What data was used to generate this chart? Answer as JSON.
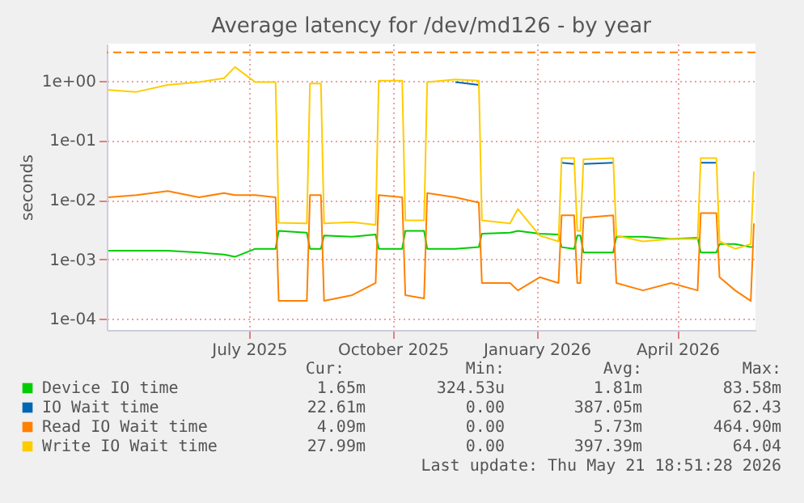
{
  "chart_data": {
    "type": "line",
    "title": "Average latency for /dev/md126 - by year",
    "ylabel": "seconds",
    "log": true,
    "grid": true,
    "legend": "bottom",
    "marker": "none",
    "line_style": "solid",
    "x": [
      "2025-04-02",
      "2025-04-20",
      "2025-05-10",
      "2025-05-30",
      "2025-06-15",
      "2025-06-22",
      "2025-07-05",
      "2025-07-18",
      "2025-07-20",
      "2025-08-07",
      "2025-08-09",
      "2025-08-16",
      "2025-08-18",
      "2025-09-05",
      "2025-09-20",
      "2025-09-22",
      "2025-10-07",
      "2025-10-09",
      "2025-10-21",
      "2025-10-23",
      "2025-11-10",
      "2025-11-25",
      "2025-11-27",
      "2025-12-15",
      "2025-12-20",
      "2026-01-03",
      "2026-01-15",
      "2026-01-17",
      "2026-01-25",
      "2026-01-27",
      "2026-01-29",
      "2026-01-31",
      "2026-02-19",
      "2026-02-21",
      "2026-03-10",
      "2026-03-28",
      "2026-04-14",
      "2026-04-16",
      "2026-04-26",
      "2026-04-28",
      "2026-05-08",
      "2026-05-18",
      "2026-05-20"
    ],
    "xlim": [
      "2025-04-01",
      "2026-05-21"
    ],
    "xticks": [
      {
        "value": "2025-07-01",
        "label": "July 2025"
      },
      {
        "value": "2025-10-01",
        "label": "October 2025"
      },
      {
        "value": "2026-01-01",
        "label": "January 2026"
      },
      {
        "value": "2026-04-01",
        "label": "April 2026"
      }
    ],
    "ylim": [
      6.5e-05,
      4.2
    ],
    "yticks": [
      {
        "value": 0.0001,
        "label": "1e-04"
      },
      {
        "value": 0.001,
        "label": "1e-03"
      },
      {
        "value": 0.01,
        "label": "1e-02"
      },
      {
        "value": 0.1,
        "label": "1e-01"
      },
      {
        "value": 1,
        "label": "1e+00"
      }
    ],
    "series": [
      {
        "name": "Device IO time",
        "color": "#00cc00",
        "values": [
          0.0014,
          0.0014,
          0.0014,
          0.0013,
          0.0012,
          0.0011,
          0.0015,
          0.0015,
          0.003,
          0.0028,
          0.0015,
          0.0015,
          0.0025,
          0.0024,
          0.0026,
          0.0015,
          0.0015,
          0.003,
          0.003,
          0.0015,
          0.0015,
          0.0016,
          0.0027,
          0.0028,
          0.003,
          0.0027,
          0.0026,
          0.0016,
          0.0015,
          0.0025,
          0.0025,
          0.0013,
          0.0013,
          0.0024,
          0.0024,
          0.0022,
          0.0023,
          0.0013,
          0.0013,
          0.0018,
          0.0018,
          0.0016,
          0.00165
        ]
      },
      {
        "name": "IO Wait time",
        "color": "#0066b3",
        "values": [
          null,
          null,
          null,
          null,
          null,
          null,
          null,
          null,
          null,
          null,
          null,
          null,
          null,
          null,
          null,
          null,
          null,
          null,
          null,
          null,
          0.95,
          0.85,
          null,
          null,
          null,
          null,
          null,
          0.042,
          0.04,
          null,
          null,
          0.04,
          0.042,
          null,
          null,
          null,
          null,
          0.042,
          0.042,
          null,
          null,
          null,
          null
        ]
      },
      {
        "name": "Read IO Wait time",
        "color": "#ff8000",
        "values": [
          0.011,
          0.012,
          0.014,
          0.011,
          0.013,
          0.012,
          0.012,
          0.011,
          0.0002,
          0.0002,
          0.012,
          0.012,
          0.0002,
          0.00025,
          0.0004,
          0.012,
          0.011,
          0.00025,
          0.00022,
          0.013,
          0.011,
          0.009,
          0.0004,
          0.0004,
          0.0003,
          0.0005,
          0.0004,
          0.0055,
          0.0055,
          0.0004,
          0.0004,
          0.005,
          0.0055,
          0.0004,
          0.0003,
          0.0004,
          0.0003,
          0.006,
          0.006,
          0.0005,
          0.0003,
          0.0002,
          0.004
        ]
      },
      {
        "name": "Write IO Wait time",
        "color": "#ffcc00",
        "values": [
          0.7,
          0.65,
          0.85,
          0.95,
          1.1,
          1.7,
          0.95,
          0.95,
          0.0041,
          0.004,
          0.9,
          0.9,
          0.004,
          0.0042,
          0.0038,
          1.0,
          1.0,
          0.0045,
          0.0045,
          0.95,
          1.05,
          1.0,
          0.0045,
          0.004,
          0.007,
          0.0025,
          0.002,
          0.05,
          0.05,
          0.003,
          0.003,
          0.048,
          0.05,
          0.0025,
          0.002,
          0.0022,
          0.0022,
          0.05,
          0.05,
          0.002,
          0.0015,
          0.0018,
          0.03
        ]
      }
    ],
    "ref_lines": [
      {
        "axis": "y",
        "value": 3,
        "color": "#ff8000",
        "line_style": "dashed"
      }
    ],
    "annotations": [
      "Cur:",
      "Min:",
      "Avg:",
      "Max:",
      "1.65m",
      "324.53u",
      "1.81m",
      "83.58m",
      "22.61m",
      "0.00",
      "387.05m",
      "62.43",
      "4.09m",
      "0.00",
      "5.73m",
      "464.90m",
      "27.99m",
      "0.00",
      "397.39m",
      "64.04",
      "Last update: Thu May 21 18:51:28 2026"
    ]
  }
}
